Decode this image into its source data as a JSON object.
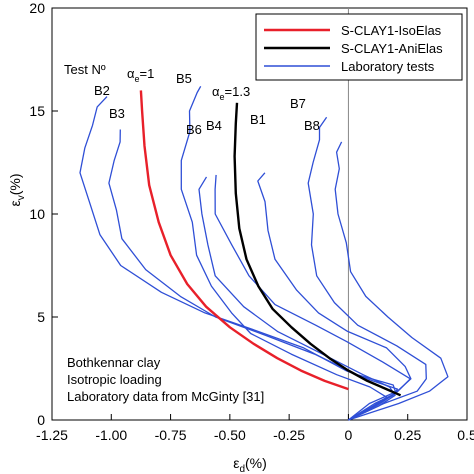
{
  "chart_data": {
    "type": "line",
    "title": "",
    "xlabel": "ε_d(%)",
    "ylabel": "ε_v(%)",
    "xlim": [
      -1.25,
      0.5
    ],
    "ylim": [
      0,
      20
    ],
    "x_ticks": [
      -1.25,
      -1.0,
      -0.75,
      -0.5,
      -0.25,
      0,
      0.25,
      0.5
    ],
    "x_tick_labels": [
      "-1.25",
      "-1.00",
      "-0.75",
      "-0.50",
      "-0.25",
      "0",
      "0.25",
      "0.5"
    ],
    "y_ticks": [
      0,
      5,
      10,
      15,
      20
    ],
    "y_tick_labels": [
      "0",
      "5",
      "10",
      "15",
      "20"
    ],
    "grid": false,
    "legend_position": "top-right",
    "vertical_reference_line_x": 0,
    "colors": {
      "isoelas": "#e8202a",
      "anielas": "#000000",
      "lab": "#2f4fd6",
      "refline": "#888888"
    },
    "legend": [
      {
        "label": "S-CLAY1-IsoElas",
        "color": "#e8202a"
      },
      {
        "label": "S-CLAY1-AniElas",
        "color": "#000000"
      },
      {
        "label": "Laboratory tests",
        "color": "#2f4fd6"
      }
    ],
    "series": [
      {
        "name": "S-CLAY1-IsoElas",
        "color": "#e8202a",
        "width": 2.4,
        "points": [
          [
            0.0,
            1.5
          ],
          [
            -0.1,
            1.9
          ],
          [
            -0.2,
            2.4
          ],
          [
            -0.3,
            3.0
          ],
          [
            -0.4,
            3.7
          ],
          [
            -0.5,
            4.5
          ],
          [
            -0.6,
            5.5
          ],
          [
            -0.68,
            6.6
          ],
          [
            -0.75,
            8.0
          ],
          [
            -0.8,
            9.6
          ],
          [
            -0.84,
            11.4
          ],
          [
            -0.86,
            13.3
          ],
          [
            -0.87,
            15.0
          ],
          [
            -0.875,
            16.0
          ]
        ]
      },
      {
        "name": "S-CLAY1-AniElas",
        "color": "#000000",
        "width": 2.4,
        "points": [
          [
            0.22,
            1.2
          ],
          [
            0.16,
            1.5
          ],
          [
            0.08,
            1.9
          ],
          [
            0.0,
            2.4
          ],
          [
            -0.08,
            3.0
          ],
          [
            -0.16,
            3.7
          ],
          [
            -0.24,
            4.5
          ],
          [
            -0.32,
            5.4
          ],
          [
            -0.38,
            6.5
          ],
          [
            -0.43,
            7.8
          ],
          [
            -0.46,
            9.3
          ],
          [
            -0.475,
            11.0
          ],
          [
            -0.48,
            12.8
          ],
          [
            -0.475,
            14.4
          ],
          [
            -0.47,
            15.4
          ]
        ]
      },
      {
        "test": "B2",
        "color": "#2f4fd6",
        "width": 1.3,
        "points": [
          [
            0.0,
            0.0
          ],
          [
            0.1,
            0.7
          ],
          [
            0.2,
            1.2
          ],
          [
            0.2,
            1.5
          ],
          [
            0.1,
            1.9
          ],
          [
            0.0,
            2.4
          ],
          [
            -0.2,
            3.5
          ],
          [
            -0.4,
            4.4
          ],
          [
            -0.6,
            5.2
          ],
          [
            -0.8,
            6.2
          ],
          [
            -0.95,
            7.5
          ],
          [
            -1.05,
            9.0
          ],
          [
            -1.1,
            10.6
          ],
          [
            -1.12,
            12.0
          ],
          [
            -1.12,
            13.2
          ],
          [
            -1.08,
            14.3
          ],
          [
            -1.05,
            15.2
          ],
          [
            -1.03,
            15.7
          ]
        ]
      },
      {
        "test": "B3",
        "color": "#2f4fd6",
        "width": 1.3,
        "points": [
          [
            0.0,
            0.0
          ],
          [
            0.12,
            0.8
          ],
          [
            0.2,
            1.3
          ],
          [
            0.18,
            1.7
          ],
          [
            0.05,
            2.2
          ],
          [
            -0.15,
            3.2
          ],
          [
            -0.35,
            4.1
          ],
          [
            -0.55,
            5.0
          ],
          [
            -0.72,
            6.0
          ],
          [
            -0.85,
            7.3
          ],
          [
            -0.95,
            8.8
          ],
          [
            -0.99,
            10.2
          ],
          [
            -1.0,
            11.5
          ],
          [
            -0.99,
            12.6
          ],
          [
            -0.97,
            13.5
          ],
          [
            -0.95,
            14.1
          ]
        ]
      },
      {
        "test": "B5",
        "color": "#2f4fd6",
        "width": 1.3,
        "points": [
          [
            0.0,
            0.0
          ],
          [
            0.1,
            0.6
          ],
          [
            0.15,
            1.1
          ],
          [
            0.1,
            1.6
          ],
          [
            -0.05,
            2.2
          ],
          [
            -0.25,
            3.2
          ],
          [
            -0.4,
            4.2
          ],
          [
            -0.5,
            5.2
          ],
          [
            -0.58,
            6.5
          ],
          [
            -0.63,
            8.0
          ],
          [
            -0.67,
            9.6
          ],
          [
            -0.7,
            11.2
          ],
          [
            -0.7,
            12.6
          ],
          [
            -0.68,
            14.0
          ],
          [
            -0.66,
            15.0
          ],
          [
            -0.64,
            15.9
          ],
          [
            -0.63,
            16.2
          ]
        ]
      },
      {
        "test": "B6",
        "color": "#2f4fd6",
        "width": 1.3,
        "points": [
          [
            0.0,
            0.0
          ],
          [
            0.12,
            0.7
          ],
          [
            0.2,
            1.2
          ],
          [
            0.18,
            1.6
          ],
          [
            0.05,
            2.2
          ],
          [
            -0.1,
            3.2
          ],
          [
            -0.3,
            4.3
          ],
          [
            -0.45,
            5.5
          ],
          [
            -0.55,
            7.0
          ],
          [
            -0.6,
            8.5
          ],
          [
            -0.62,
            10.0
          ],
          [
            -0.62,
            11.2
          ],
          [
            -0.61,
            11.8
          ]
        ]
      },
      {
        "test": "B4",
        "color": "#2f4fd6",
        "width": 1.3,
        "points": [
          [
            0.0,
            0.0
          ],
          [
            0.13,
            0.8
          ],
          [
            0.22,
            1.4
          ],
          [
            0.25,
            2.0
          ],
          [
            0.15,
            2.8
          ],
          [
            0.0,
            3.8
          ],
          [
            -0.15,
            4.6
          ],
          [
            -0.3,
            5.6
          ],
          [
            -0.42,
            7.0
          ],
          [
            -0.5,
            8.5
          ],
          [
            -0.55,
            10.0
          ],
          [
            -0.57,
            11.2
          ],
          [
            -0.56,
            11.9
          ]
        ]
      },
      {
        "test": "B1",
        "color": "#2f4fd6",
        "width": 1.3,
        "points": [
          [
            0.0,
            0.0
          ],
          [
            0.1,
            0.8
          ],
          [
            0.2,
            1.4
          ],
          [
            0.26,
            2.0
          ],
          [
            0.25,
            2.6
          ],
          [
            0.15,
            3.5
          ],
          [
            0.0,
            4.3
          ],
          [
            -0.12,
            5.2
          ],
          [
            -0.23,
            6.3
          ],
          [
            -0.3,
            7.8
          ],
          [
            -0.34,
            9.2
          ],
          [
            -0.36,
            10.6
          ],
          [
            -0.37,
            11.6
          ],
          [
            -0.36,
            12.0
          ]
        ]
      },
      {
        "test": "B7",
        "color": "#2f4fd6",
        "width": 1.3,
        "points": [
          [
            0.0,
            0.0
          ],
          [
            0.15,
            0.8
          ],
          [
            0.28,
            1.4
          ],
          [
            0.34,
            2.0
          ],
          [
            0.32,
            2.7
          ],
          [
            0.2,
            3.6
          ],
          [
            0.05,
            4.6
          ],
          [
            -0.07,
            5.7
          ],
          [
            -0.13,
            7.0
          ],
          [
            -0.15,
            8.5
          ],
          [
            -0.16,
            10.0
          ],
          [
            -0.16,
            11.5
          ],
          [
            -0.15,
            12.5
          ],
          [
            -0.13,
            13.6
          ],
          [
            -0.11,
            14.2
          ],
          [
            -0.1,
            14.7
          ]
        ]
      },
      {
        "test": "B8",
        "color": "#2f4fd6",
        "width": 1.3,
        "points": [
          [
            0.0,
            0.0
          ],
          [
            0.2,
            0.8
          ],
          [
            0.35,
            1.4
          ],
          [
            0.42,
            2.1
          ],
          [
            0.38,
            3.0
          ],
          [
            0.28,
            4.0
          ],
          [
            0.16,
            5.0
          ],
          [
            0.07,
            6.0
          ],
          [
            0.02,
            7.2
          ],
          [
            -0.02,
            8.6
          ],
          [
            -0.04,
            10.0
          ],
          [
            -0.05,
            11.2
          ],
          [
            -0.05,
            12.2
          ],
          [
            -0.04,
            13.0
          ],
          [
            -0.03,
            13.5
          ]
        ]
      }
    ],
    "annotations": {
      "test_header": "Test Nº",
      "alpha_iso": "=1",
      "alpha_ani": "=1.3",
      "alpha_symbol": "α",
      "alpha_subscript": "e",
      "note_line1": "Bothkennar clay",
      "note_line2": "Isotropic loading",
      "note_line3": "Laboratory data from McGinty [31]",
      "test_labels": [
        "B2",
        "B3",
        "B5",
        "B6",
        "B4",
        "B1",
        "B7",
        "B8"
      ]
    }
  }
}
